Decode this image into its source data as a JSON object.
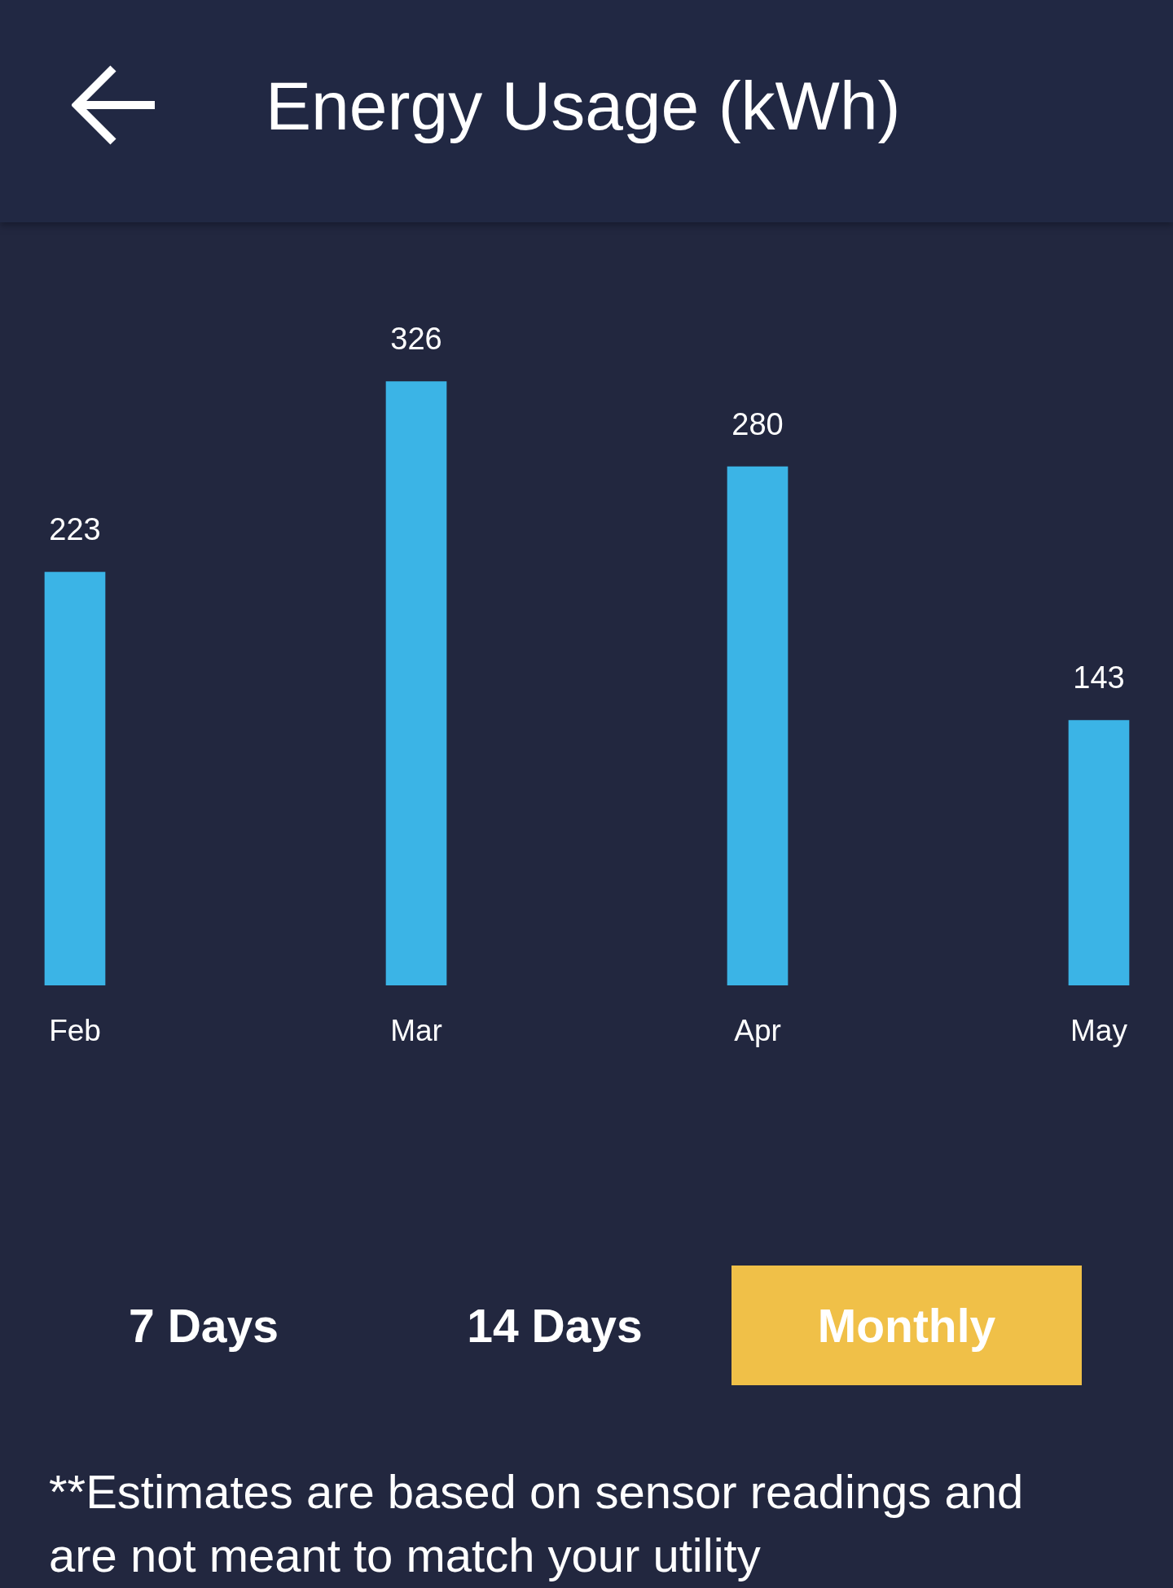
{
  "chart_data": {
    "type": "bar",
    "title": "Energy Usage (kWh)",
    "categories": [
      "Feb",
      "Mar",
      "Apr",
      "May"
    ],
    "values": [
      223,
      326,
      280,
      143
    ],
    "color": "#3bb4e6",
    "data_labels": true,
    "annotations": [
      "7 Days",
      "14 Days",
      "Monthly",
      "**Estimates are based on sensor readings and are not meant to match your utility"
    ]
  }
}
